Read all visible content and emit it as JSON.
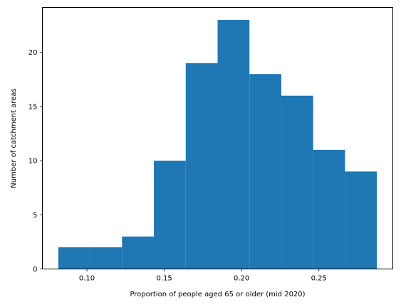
{
  "chart_data": {
    "type": "bar",
    "subtype": "histogram",
    "xlabel": "Proportion of people aged 65 or older (mid 2020)",
    "ylabel": "Number of catchment areas",
    "bin_edges": [
      0.0815,
      0.1021,
      0.1227,
      0.1433,
      0.1639,
      0.1845,
      0.2051,
      0.2257,
      0.2463,
      0.2669,
      0.2875
    ],
    "values": [
      2,
      2,
      3,
      10,
      19,
      23,
      18,
      16,
      11,
      9
    ],
    "xlim": [
      0.0712,
      0.2978
    ],
    "ylim": [
      0,
      24.15
    ],
    "xticks": [
      0.1,
      0.15,
      0.2,
      0.25
    ],
    "xtick_labels": [
      "0.10",
      "0.15",
      "0.20",
      "0.25"
    ],
    "yticks": [
      0,
      5,
      10,
      15,
      20
    ],
    "ytick_labels": [
      "0",
      "5",
      "10",
      "15",
      "20"
    ],
    "bar_color": "#1f77b4",
    "grid": false,
    "legend": "none"
  }
}
